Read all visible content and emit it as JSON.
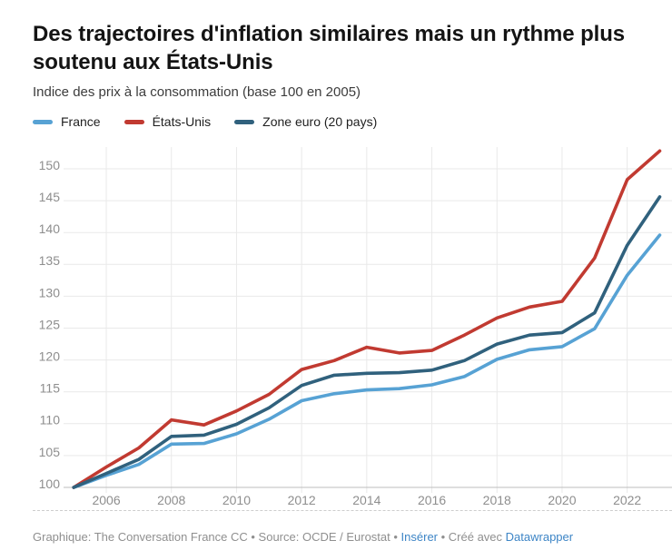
{
  "header": {
    "title": "Des trajectoires d'inflation similaires mais un rythme plus soutenu aux États-Unis",
    "subtitle": "Indice des prix à la consommation (base 100 en 2005)"
  },
  "legend": [
    {
      "label": "France",
      "color": "#57a2d4"
    },
    {
      "label": "États-Unis",
      "color": "#c13a31"
    },
    {
      "label": "Zone euro (20 pays)",
      "color": "#30617d"
    }
  ],
  "colors": {
    "france": "#57a2d4",
    "etats_unis": "#c13a31",
    "zone_euro": "#30617d",
    "link_blue": "#3d85c6",
    "grid": "#e9e9e9",
    "axis_text": "#8e8e8e"
  },
  "chart_data": {
    "type": "line",
    "title": "Des trajectoires d'inflation similaires mais un rythme plus soutenu aux États-Unis",
    "subtitle": "Indice des prix à la consommation (base 100 en 2005)",
    "xlabel": "",
    "ylabel": "",
    "grid": true,
    "legend_position": "top",
    "ylim": [
      100,
      153
    ],
    "y_ticks": [
      100,
      105,
      110,
      115,
      120,
      125,
      130,
      135,
      140,
      145,
      150
    ],
    "x": [
      2005,
      2006,
      2007,
      2008,
      2009,
      2010,
      2011,
      2012,
      2013,
      2014,
      2015,
      2016,
      2017,
      2018,
      2019,
      2020,
      2021,
      2022,
      2023
    ],
    "x_tick_labels": [
      2006,
      2008,
      2010,
      2012,
      2014,
      2016,
      2018,
      2020,
      2022
    ],
    "series": [
      {
        "name": "France",
        "color": "#57a2d4",
        "values": [
          100,
          101.9,
          103.6,
          106.8,
          106.9,
          108.4,
          110.7,
          113.6,
          114.7,
          115.3,
          115.5,
          116.1,
          117.4,
          120.1,
          121.6,
          122.1,
          124.9,
          133.3,
          139.6
        ]
      },
      {
        "name": "États-Unis",
        "color": "#c13a31",
        "values": [
          100,
          103.2,
          106.2,
          110.6,
          109.8,
          112.0,
          114.6,
          118.5,
          119.9,
          122.0,
          121.1,
          121.5,
          123.9,
          126.6,
          128.3,
          129.2,
          136.0,
          148.3,
          152.8
        ]
      },
      {
        "name": "Zone euro (20 pays)",
        "color": "#30617d",
        "values": [
          100,
          102.2,
          104.4,
          108.0,
          108.2,
          109.9,
          112.5,
          116.0,
          117.6,
          117.9,
          118.0,
          118.4,
          119.9,
          122.5,
          123.9,
          124.3,
          127.4,
          138.0,
          145.6
        ]
      }
    ]
  },
  "footer": {
    "text_before_link1": "Graphique: The Conversation France CC • Source: OCDE / Eurostat • ",
    "link1": "Insérer",
    "text_between": " • Créé avec ",
    "link2": "Datawrapper"
  }
}
